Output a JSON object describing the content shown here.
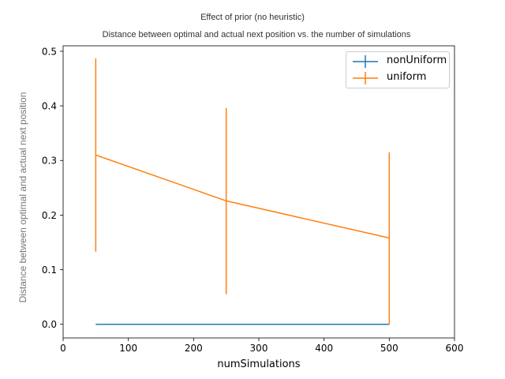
{
  "chart_data": {
    "type": "line",
    "suptitle": "Effect of prior (no heuristic)",
    "title": "Distance between optimal and actual next position vs. the number of simulations",
    "xlabel": "numSimulations",
    "ylabel": "Distance between optimal and actual next position",
    "xlim": [
      0,
      600
    ],
    "ylim": [
      -0.025,
      0.51
    ],
    "xticks": [
      0,
      100,
      200,
      300,
      400,
      500,
      600
    ],
    "yticks": [
      0.0,
      0.1,
      0.2,
      0.3,
      0.4,
      0.5
    ],
    "xtick_labels": [
      "0",
      "100",
      "200",
      "300",
      "400",
      "500",
      "600"
    ],
    "ytick_labels": [
      "0.0",
      "0.1",
      "0.2",
      "0.3",
      "0.4",
      "0.5"
    ],
    "grid": false,
    "legend_position": "top-right",
    "series": [
      {
        "name": "nonUniform",
        "color": "#1f77b4",
        "x": [
          50,
          250,
          500
        ],
        "y": [
          0.0,
          0.0,
          0.0
        ],
        "yerr_low": [
          0.0,
          0.0,
          0.0
        ],
        "yerr_high": [
          0.0,
          0.0,
          0.0
        ]
      },
      {
        "name": "uniform",
        "color": "#ff7f0e",
        "x": [
          50,
          250,
          500
        ],
        "y": [
          0.31,
          0.226,
          0.158
        ],
        "yerr_low": [
          0.133,
          0.055,
          0.0
        ],
        "yerr_high": [
          0.487,
          0.396,
          0.315
        ]
      }
    ]
  }
}
